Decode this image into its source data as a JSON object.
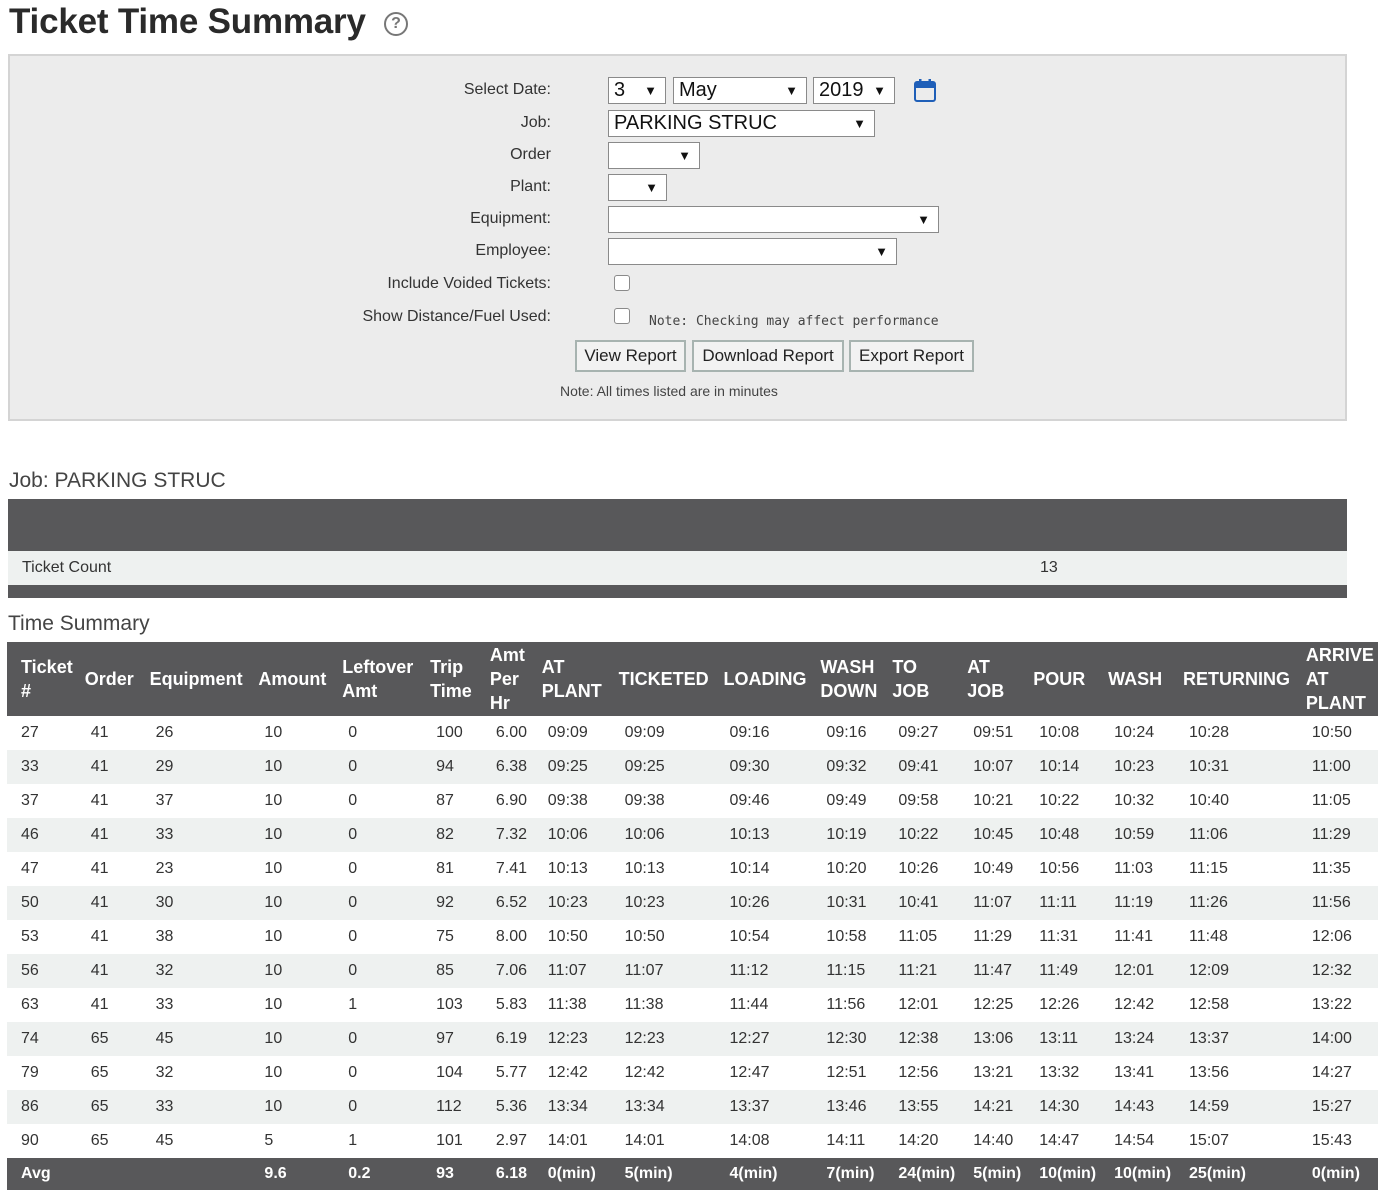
{
  "page": {
    "title": "Ticket Time Summary",
    "help_icon": "question-circle-icon"
  },
  "filters": {
    "select_date_label": "Select Date:",
    "day": "3",
    "month": "May",
    "year": "2019",
    "calendar_icon": "calendar-icon",
    "job_label": "Job:",
    "job_value": "PARKING STRUC",
    "order_label": "Order",
    "order_value": "",
    "plant_label": "Plant:",
    "plant_value": "",
    "equipment_label": "Equipment:",
    "equipment_value": "",
    "employee_label": "Employee:",
    "employee_value": "",
    "include_voided_label": "Include Voided Tickets:",
    "include_voided_checked": false,
    "show_distance_label": "Show Distance/Fuel Used:",
    "show_distance_checked": false,
    "performance_note": "Note: Checking may affect performance",
    "view_report": "View Report",
    "download_report": "Download Report",
    "export_report": "Export Report",
    "minutes_note": "Note: All times listed are in minutes"
  },
  "job_summary": {
    "heading": "Job: PARKING STRUC",
    "ticket_count_label": "Ticket Count",
    "ticket_count_value": "13"
  },
  "time_summary": {
    "heading": "Time Summary",
    "columns": [
      "Ticket #",
      "Order",
      "Equipment",
      "Amount",
      "Leftover Amt",
      "Trip Time",
      "Amt Per Hr",
      "AT PLANT",
      "TICKETED",
      "LOADING",
      "WASH DOWN",
      "TO JOB",
      "AT JOB",
      "POUR",
      "WASH",
      "RETURNING",
      "ARRIVE AT PLANT"
    ],
    "rows": [
      [
        "27",
        "41",
        "26",
        "10",
        "0",
        "100",
        "6.00",
        "09:09",
        "09:09",
        "09:16",
        "09:16",
        "09:27",
        "09:51",
        "10:08",
        "10:24",
        "10:28",
        "10:50"
      ],
      [
        "33",
        "41",
        "29",
        "10",
        "0",
        "94",
        "6.38",
        "09:25",
        "09:25",
        "09:30",
        "09:32",
        "09:41",
        "10:07",
        "10:14",
        "10:23",
        "10:31",
        "11:00"
      ],
      [
        "37",
        "41",
        "37",
        "10",
        "0",
        "87",
        "6.90",
        "09:38",
        "09:38",
        "09:46",
        "09:49",
        "09:58",
        "10:21",
        "10:22",
        "10:32",
        "10:40",
        "11:05"
      ],
      [
        "46",
        "41",
        "33",
        "10",
        "0",
        "82",
        "7.32",
        "10:06",
        "10:06",
        "10:13",
        "10:19",
        "10:22",
        "10:45",
        "10:48",
        "10:59",
        "11:06",
        "11:29"
      ],
      [
        "47",
        "41",
        "23",
        "10",
        "0",
        "81",
        "7.41",
        "10:13",
        "10:13",
        "10:14",
        "10:20",
        "10:26",
        "10:49",
        "10:56",
        "11:03",
        "11:15",
        "11:35"
      ],
      [
        "50",
        "41",
        "30",
        "10",
        "0",
        "92",
        "6.52",
        "10:23",
        "10:23",
        "10:26",
        "10:31",
        "10:41",
        "11:07",
        "11:11",
        "11:19",
        "11:26",
        "11:56"
      ],
      [
        "53",
        "41",
        "38",
        "10",
        "0",
        "75",
        "8.00",
        "10:50",
        "10:50",
        "10:54",
        "10:58",
        "11:05",
        "11:29",
        "11:31",
        "11:41",
        "11:48",
        "12:06"
      ],
      [
        "56",
        "41",
        "32",
        "10",
        "0",
        "85",
        "7.06",
        "11:07",
        "11:07",
        "11:12",
        "11:15",
        "11:21",
        "11:47",
        "11:49",
        "12:01",
        "12:09",
        "12:32"
      ],
      [
        "63",
        "41",
        "33",
        "10",
        "1",
        "103",
        "5.83",
        "11:38",
        "11:38",
        "11:44",
        "11:56",
        "12:01",
        "12:25",
        "12:26",
        "12:42",
        "12:58",
        "13:22"
      ],
      [
        "74",
        "65",
        "45",
        "10",
        "0",
        "97",
        "6.19",
        "12:23",
        "12:23",
        "12:27",
        "12:30",
        "12:38",
        "13:06",
        "13:11",
        "13:24",
        "13:37",
        "14:00"
      ],
      [
        "79",
        "65",
        "32",
        "10",
        "0",
        "104",
        "5.77",
        "12:42",
        "12:42",
        "12:47",
        "12:51",
        "12:56",
        "13:21",
        "13:32",
        "13:41",
        "13:56",
        "14:27"
      ],
      [
        "86",
        "65",
        "33",
        "10",
        "0",
        "112",
        "5.36",
        "13:34",
        "13:34",
        "13:37",
        "13:46",
        "13:55",
        "14:21",
        "14:30",
        "14:43",
        "14:59",
        "15:27"
      ],
      [
        "90",
        "65",
        "45",
        "5",
        "1",
        "101",
        "2.97",
        "14:01",
        "14:01",
        "14:08",
        "14:11",
        "14:20",
        "14:40",
        "14:47",
        "14:54",
        "15:07",
        "15:43"
      ]
    ],
    "avg_row": [
      "Avg",
      "",
      "",
      "9.6",
      "0.2",
      "93",
      "6.18",
      "0(min)",
      "5(min)",
      "4(min)",
      "7(min)",
      "24(min)",
      "5(min)",
      "10(min)",
      "10(min)",
      "25(min)",
      "0(min)"
    ]
  }
}
